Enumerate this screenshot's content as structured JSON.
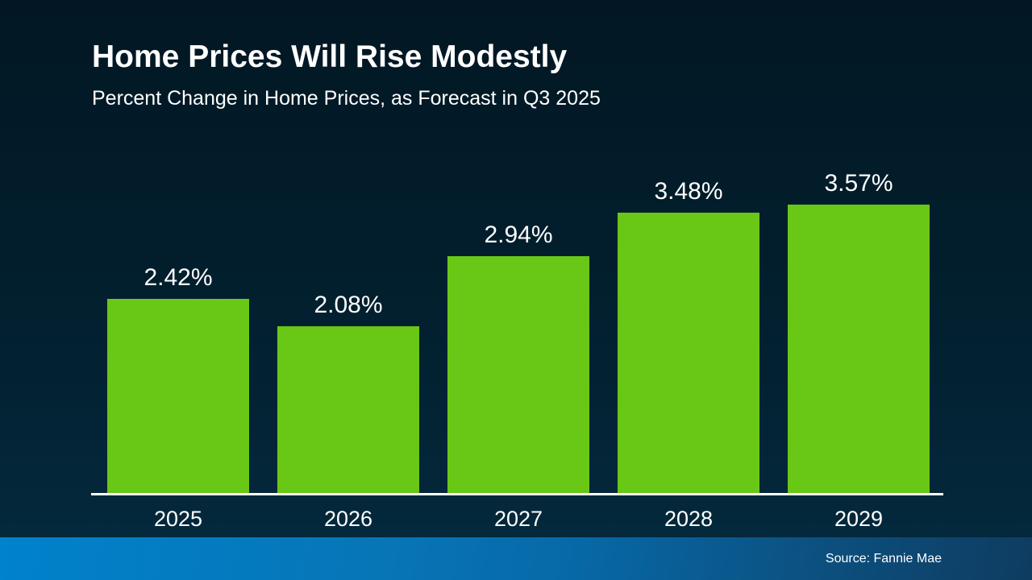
{
  "header": {
    "title": "Home Prices Will Rise Modestly",
    "subtitle": "Percent Change in Home Prices, as Forecast in Q3 2025"
  },
  "footer": {
    "source": "Source: Fannie Mae"
  },
  "colors": {
    "bar": "#69c716",
    "background_top": "#021723",
    "background_bottom": "#04293d",
    "axis": "#ffffff",
    "text": "#ffffff",
    "footer_gradient_left": "#0082cc",
    "footer_gradient_mid": "#0769a8",
    "footer_gradient_right": "#0e3c60"
  },
  "chart_data": {
    "type": "bar",
    "categories": [
      "2025",
      "2026",
      "2027",
      "2028",
      "2029"
    ],
    "values": [
      2.42,
      2.08,
      2.94,
      3.48,
      3.57
    ],
    "value_labels": [
      "2.42%",
      "2.08%",
      "2.94%",
      "3.48%",
      "3.57%"
    ],
    "title": "Home Prices Will Rise Modestly",
    "subtitle": "Percent Change in Home Prices, as Forecast in Q3 2025",
    "xlabel": "",
    "ylabel": "",
    "ylim": [
      0,
      4
    ],
    "grid": false,
    "legend": false,
    "bar_color": "#69c716",
    "source": "Source: Fannie Mae"
  }
}
